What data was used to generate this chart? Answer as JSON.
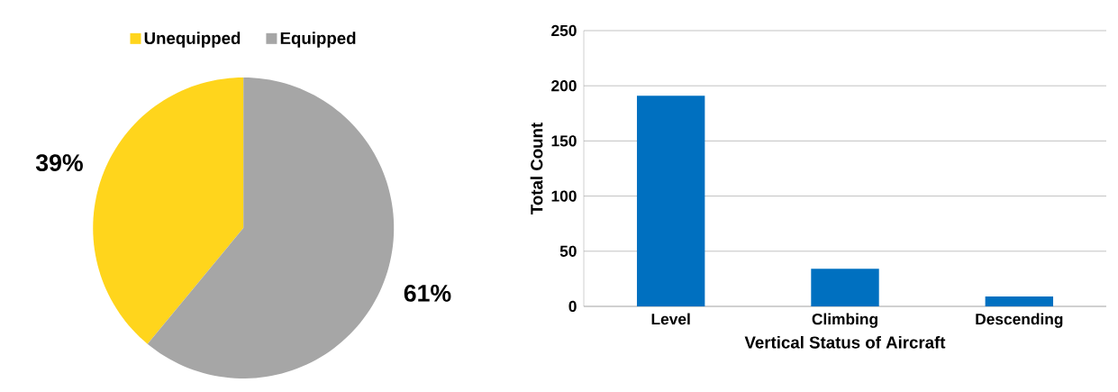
{
  "chart_data": [
    {
      "type": "pie",
      "categories": [
        "Unequipped",
        "Equipped"
      ],
      "values": [
        39,
        61
      ],
      "colors": [
        "#ffd51c",
        "#a6a6a6"
      ],
      "value_labels": [
        "39%",
        "61%"
      ],
      "legend": "top"
    },
    {
      "type": "bar",
      "categories": [
        "Level",
        "Climbing",
        "Descending"
      ],
      "values": [
        191,
        34,
        9
      ],
      "color": "#0070c0",
      "xlabel": "Vertical Status of Aircraft",
      "ylabel": "Total Count",
      "ylim": [
        0,
        250
      ],
      "yticks": [
        0,
        50,
        100,
        150,
        200,
        250
      ],
      "grid": "y"
    }
  ]
}
